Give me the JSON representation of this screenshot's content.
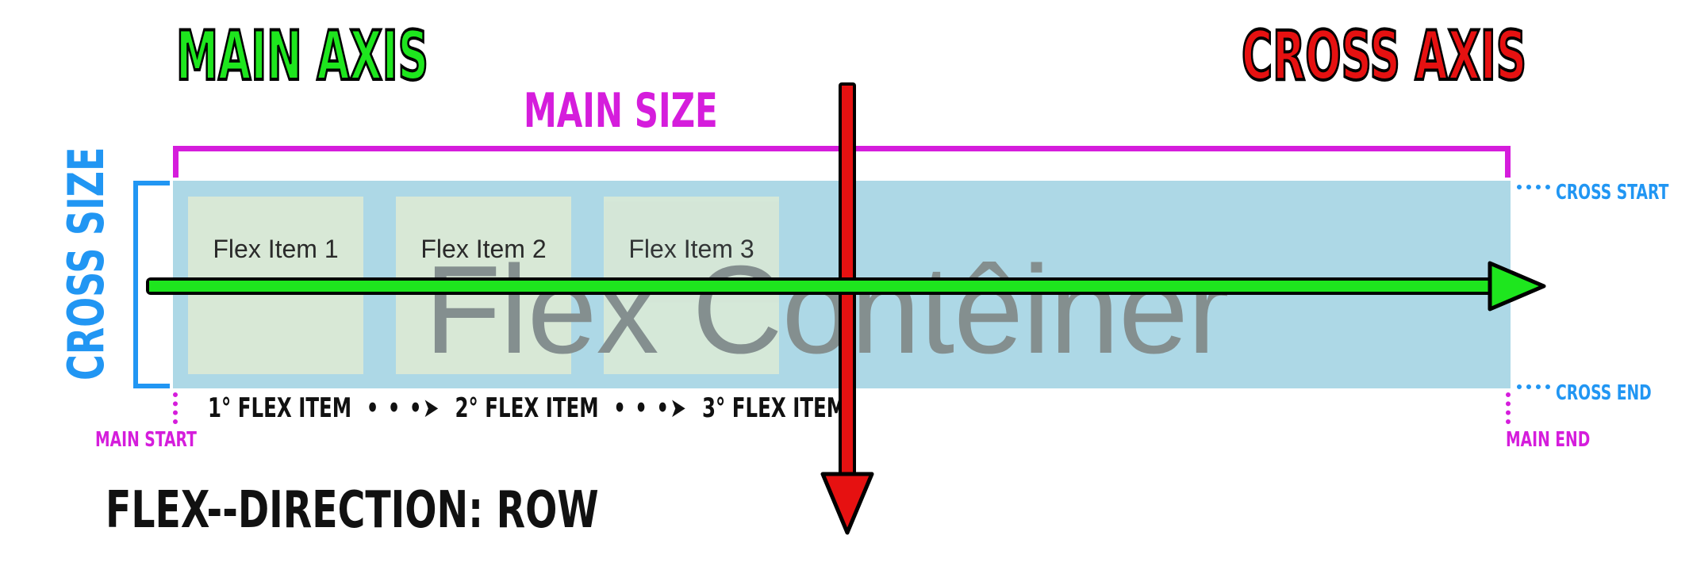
{
  "labels": {
    "main_axis": "MAIN AXIS",
    "cross_axis": "CROSS AXIS",
    "main_size": "MAIN SIZE",
    "cross_size": "CROSS SIZE",
    "cross_start": "CROSS START",
    "cross_end": "CROSS END",
    "main_start": "MAIN START",
    "main_end": "MAIN END",
    "flex_direction": "FLEX--DIRECTION: ROW"
  },
  "container": {
    "label": "Flex Contêiner",
    "items": [
      "Flex Item 1",
      "Flex Item 2",
      "Flex Item 3"
    ]
  },
  "order": {
    "first": "1° FLEX ITEM",
    "second": "2° FLEX ITEM",
    "third": "3° FLEX ITEM",
    "separator": "• • •➤"
  },
  "colors": {
    "main_axis": "#1ee61e",
    "cross_axis": "#e61111",
    "main_size": "#d51ddc",
    "cross_size": "#2196f3",
    "container": "#add8e6",
    "item": "#d8e8d6"
  }
}
